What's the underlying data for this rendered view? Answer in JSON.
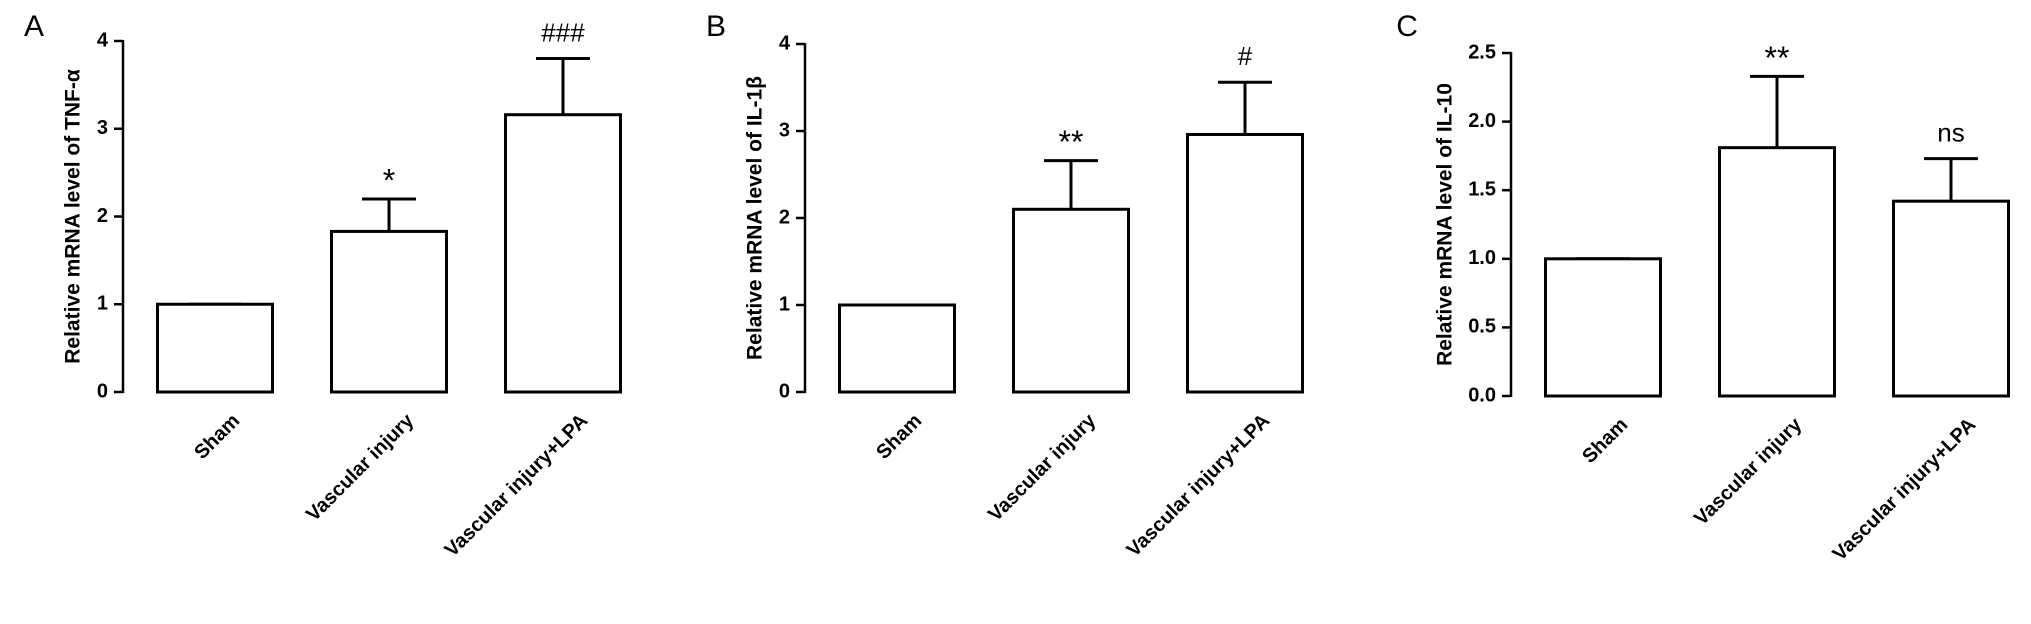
{
  "chart_data": [
    {
      "type": "bar",
      "panel": "A",
      "ylabel": "Relative mRNA level of TNF-α",
      "categories": [
        "Sham",
        "Vascular injury",
        "Vascular injury+LPA"
      ],
      "values": [
        1.0,
        1.83,
        3.16
      ],
      "errors": [
        0,
        0.37,
        0.64
      ],
      "annotations": [
        null,
        "*",
        "###"
      ],
      "color": "#ffffff",
      "ylim": [
        0,
        4
      ],
      "yticks": [
        0,
        1,
        2,
        3,
        4
      ]
    },
    {
      "type": "bar",
      "panel": "B",
      "ylabel": "Relative mRNA level of IL-1β",
      "categories": [
        "Sham",
        "Vascular injury",
        "Vascular injury+LPA"
      ],
      "values": [
        1.0,
        2.1,
        2.96
      ],
      "errors": [
        0,
        0.56,
        0.6
      ],
      "annotations": [
        null,
        "**",
        "#"
      ],
      "color": "#ffffff",
      "ylim": [
        0,
        4
      ],
      "yticks": [
        0,
        1,
        2,
        3,
        4
      ]
    },
    {
      "type": "bar",
      "panel": "C",
      "ylabel": "Relative mRNA level of IL-10",
      "categories": [
        "Sham",
        "Vascular injury",
        "Vascular injury+LPA"
      ],
      "values": [
        1.0,
        1.81,
        1.42
      ],
      "errors": [
        0,
        0.52,
        0.31
      ],
      "annotations": [
        null,
        "**",
        "ns"
      ],
      "color": "#ffffff",
      "ylim": [
        0,
        2.5
      ],
      "yticks": [
        {
          "value": 0,
          "label": "0.0"
        },
        0.5,
        {
          "value": 1,
          "label": "1.0"
        },
        1.5,
        {
          "value": 2,
          "label": "2.0"
        },
        2.5
      ]
    }
  ]
}
